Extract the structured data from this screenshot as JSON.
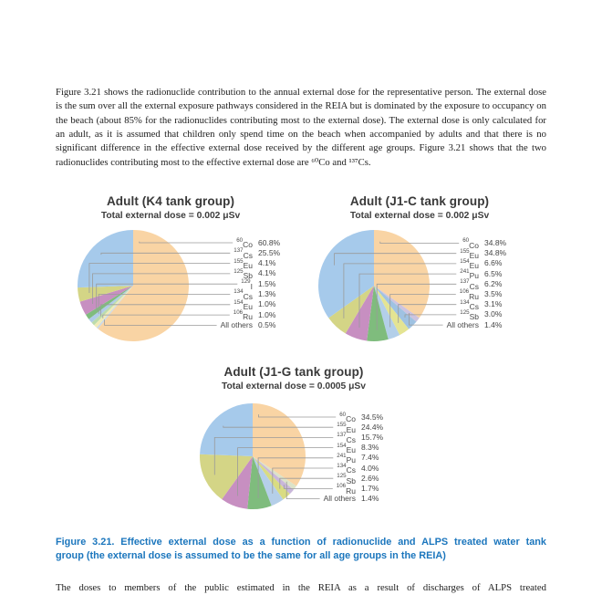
{
  "page": {
    "intro_paragraph": "Figure 3.21 shows the radionuclide contribution to the annual external dose for the representative person. The external dose is the sum over all the external exposure pathways considered in the REIA but is dominated by the exposure to occupancy on the beach (about 85% for the radionuclides contributing most to the external dose). The external dose is only calculated for an adult, as it is assumed that children only spend time on the beach when accompanied by adults and that there is no significant difference in the effective external dose received by the different age groups. Figure 3.21 shows that the two radionuclides contributing most to the effective external dose are ⁶⁰Co and ¹³⁷Cs.",
    "caption": {
      "line1": "Figure 3.21. Effective external dose as a function of radionuclide and ALPS treated water tank",
      "line2": "group (the external dose is assumed to be the same for all age groups in the REIA)",
      "color": "#1B76BD"
    },
    "bottom_paragraph": "The doses to members of the public estimated in the REIA as a result of discharges of ALPS treated"
  },
  "styles": {
    "leader_line_color": "#9a9a9a",
    "label_text_color": "#4a4a4a",
    "title_color": "#383838"
  },
  "chart_data": [
    {
      "type": "pie",
      "title": "Adult (K4 tank group)",
      "subtitle": "Total external dose = 0.002 μSv",
      "legend_position": "right",
      "slices": [
        {
          "isotope": "60Co",
          "mass": "60",
          "element": "Co",
          "value": 60.8,
          "display": "60.8%",
          "color": "#F9D4A4"
        },
        {
          "isotope": "137Cs",
          "mass": "137",
          "element": "Cs",
          "value": 25.5,
          "display": "25.5%",
          "color": "#A6CAEB"
        },
        {
          "isotope": "155Eu",
          "mass": "155",
          "element": "Eu",
          "value": 4.1,
          "display": "4.1%",
          "color": "#D4D586"
        },
        {
          "isotope": "125Sb",
          "mass": "125",
          "element": "Sb",
          "value": 4.1,
          "display": "4.1%",
          "color": "#C78FC1"
        },
        {
          "isotope": "129I",
          "mass": "129",
          "element": "I",
          "value": 1.5,
          "display": "1.5%",
          "color": "#7FBC7D"
        },
        {
          "isotope": "134Cs",
          "mass": "134",
          "element": "Cs",
          "value": 1.3,
          "display": "1.3%",
          "color": "#AFCBE8"
        },
        {
          "isotope": "154Eu",
          "mass": "154",
          "element": "Eu",
          "value": 1.0,
          "display": "1.0%",
          "color": "#BCDCAC"
        },
        {
          "isotope": "106Ru",
          "mass": "106",
          "element": "Ru",
          "value": 1.0,
          "display": "1.0%",
          "color": "#EFEBB8"
        },
        {
          "isotope": "",
          "mass": "",
          "element": "All others",
          "value": 0.5,
          "display": "0.5%",
          "color": "#C9D8EA"
        }
      ]
    },
    {
      "type": "pie",
      "title": "Adult (J1-C tank group)",
      "subtitle": "Total external dose = 0.002 μSv",
      "legend_position": "right",
      "slices": [
        {
          "isotope": "60Co",
          "mass": "60",
          "element": "Co",
          "value": 34.8,
          "display": "34.8%",
          "color": "#F9D4A4"
        },
        {
          "isotope": "155Eu",
          "mass": "155",
          "element": "Eu",
          "value": 34.8,
          "display": "34.8%",
          "color": "#A6CAEB"
        },
        {
          "isotope": "154Eu",
          "mass": "154",
          "element": "Eu",
          "value": 6.6,
          "display": "6.6%",
          "color": "#D4D586"
        },
        {
          "isotope": "241Pu",
          "mass": "241",
          "element": "Pu",
          "value": 6.5,
          "display": "6.5%",
          "color": "#C78FC1"
        },
        {
          "isotope": "137Cs",
          "mass": "137",
          "element": "Cs",
          "value": 6.2,
          "display": "6.2%",
          "color": "#7FBC7D"
        },
        {
          "isotope": "106Ru",
          "mass": "106",
          "element": "Ru",
          "value": 3.5,
          "display": "3.5%",
          "color": "#B3CFE9"
        },
        {
          "isotope": "134Cs",
          "mass": "134",
          "element": "Cs",
          "value": 3.1,
          "display": "3.1%",
          "color": "#E4E493"
        },
        {
          "isotope": "125Sb",
          "mass": "125",
          "element": "Sb",
          "value": 3.0,
          "display": "3.0%",
          "color": "#9FC2E2"
        },
        {
          "isotope": "",
          "mass": "",
          "element": "All others",
          "value": 1.4,
          "display": "1.4%",
          "color": "#CDC3DF"
        }
      ]
    },
    {
      "type": "pie",
      "title": "Adult (J1-G tank group)",
      "subtitle": "Total external dose = 0.0005 μSv",
      "legend_position": "right",
      "slices": [
        {
          "isotope": "60Co",
          "mass": "60",
          "element": "Co",
          "value": 34.5,
          "display": "34.5%",
          "color": "#F9D4A4"
        },
        {
          "isotope": "155Eu",
          "mass": "155",
          "element": "Eu",
          "value": 24.4,
          "display": "24.4%",
          "color": "#A6CAEB"
        },
        {
          "isotope": "137Cs",
          "mass": "137",
          "element": "Cs",
          "value": 15.7,
          "display": "15.7%",
          "color": "#D4D586"
        },
        {
          "isotope": "154Eu",
          "mass": "154",
          "element": "Eu",
          "value": 8.3,
          "display": "8.3%",
          "color": "#C78FC1"
        },
        {
          "isotope": "241Pu",
          "mass": "241",
          "element": "Pu",
          "value": 7.4,
          "display": "7.4%",
          "color": "#7FBC7D"
        },
        {
          "isotope": "134Cs",
          "mass": "134",
          "element": "Cs",
          "value": 4.0,
          "display": "4.0%",
          "color": "#B5CFE9"
        },
        {
          "isotope": "125Sb",
          "mass": "125",
          "element": "Sb",
          "value": 2.6,
          "display": "2.6%",
          "color": "#D9DC82"
        },
        {
          "isotope": "106Ru",
          "mass": "106",
          "element": "Ru",
          "value": 1.7,
          "display": "1.7%",
          "color": "#C9B7DA"
        },
        {
          "isotope": "",
          "mass": "",
          "element": "All others",
          "value": 1.4,
          "display": "1.4%",
          "color": "#DCE3C8"
        }
      ]
    }
  ]
}
